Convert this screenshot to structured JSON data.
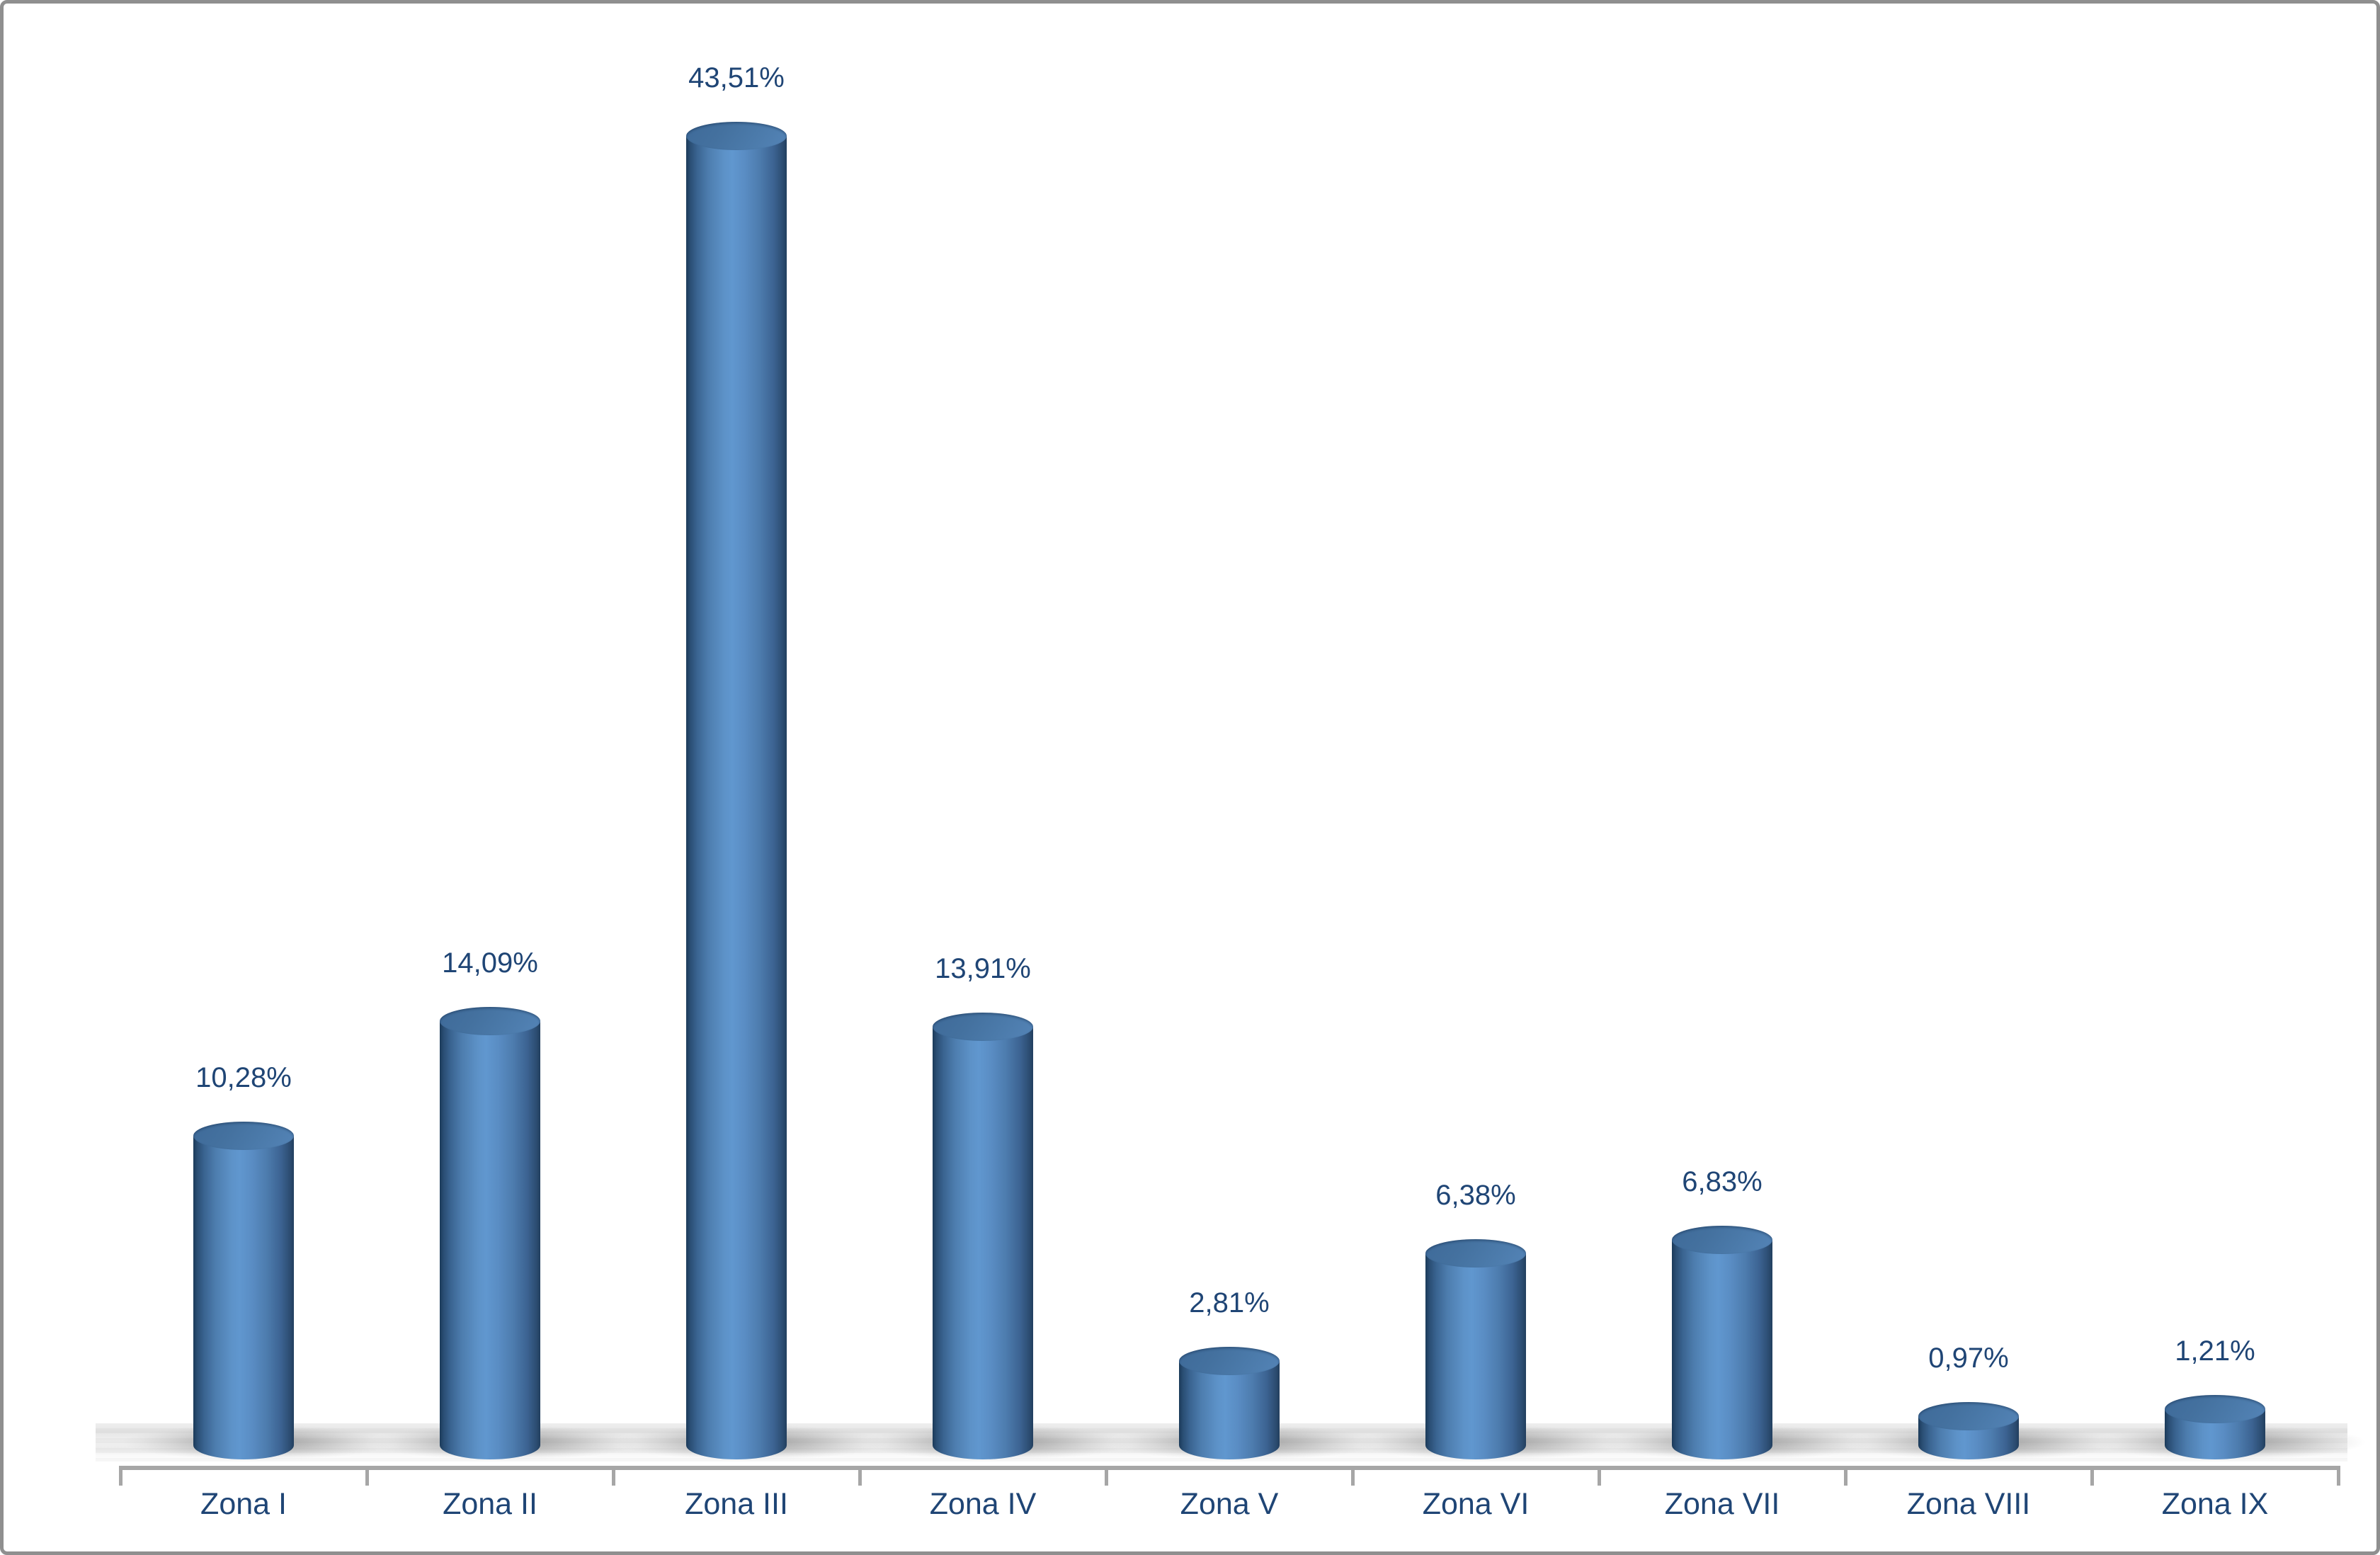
{
  "chart_data": {
    "type": "bar",
    "variant": "3d-cylinder-column",
    "title": "",
    "xlabel": "",
    "ylabel": "",
    "legend": false,
    "grid": false,
    "categories": [
      "Zona I",
      "Zona II",
      "Zona III",
      "Zona IV",
      "Zona V",
      "Zona VI",
      "Zona VII",
      "Zona VIII",
      "Zona IX"
    ],
    "values": [
      10.28,
      14.09,
      43.51,
      13.91,
      2.81,
      6.38,
      6.83,
      0.97,
      1.21
    ],
    "value_labels": [
      "10,28%",
      "14,09%",
      "43,51%",
      "13,91%",
      "2,81%",
      "6,38%",
      "6,83%",
      "0,97%",
      "1,21%"
    ],
    "unit": "%",
    "decimal_separator": ",",
    "ylim": [
      0,
      45
    ],
    "colors": {
      "bar_fill": "#4f81bd",
      "bar_edge_dark": "#1b3a59",
      "bar_highlight": "#6097cf",
      "label_text": "#1f4575",
      "axis_line": "#a6a6a6",
      "frame_border": "#8f8f8f",
      "background": "#ffffff",
      "shadow": "#787878"
    }
  }
}
